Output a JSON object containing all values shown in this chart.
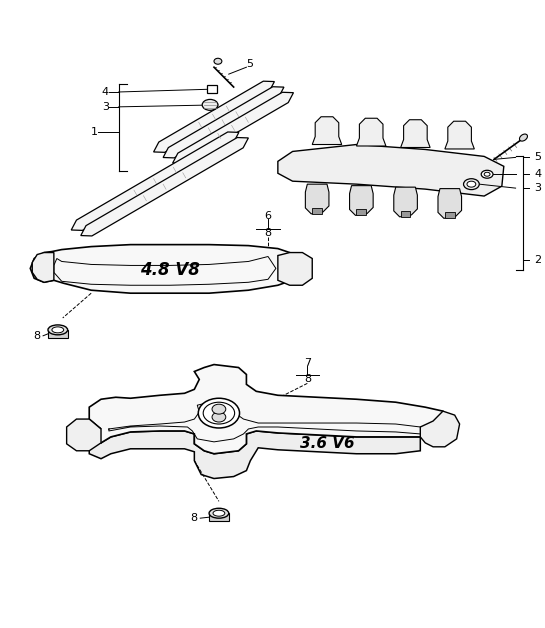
{
  "bg_color": "#ffffff",
  "line_color": "#000000",
  "fig_width": 5.45,
  "fig_height": 6.28,
  "dpi": 100
}
